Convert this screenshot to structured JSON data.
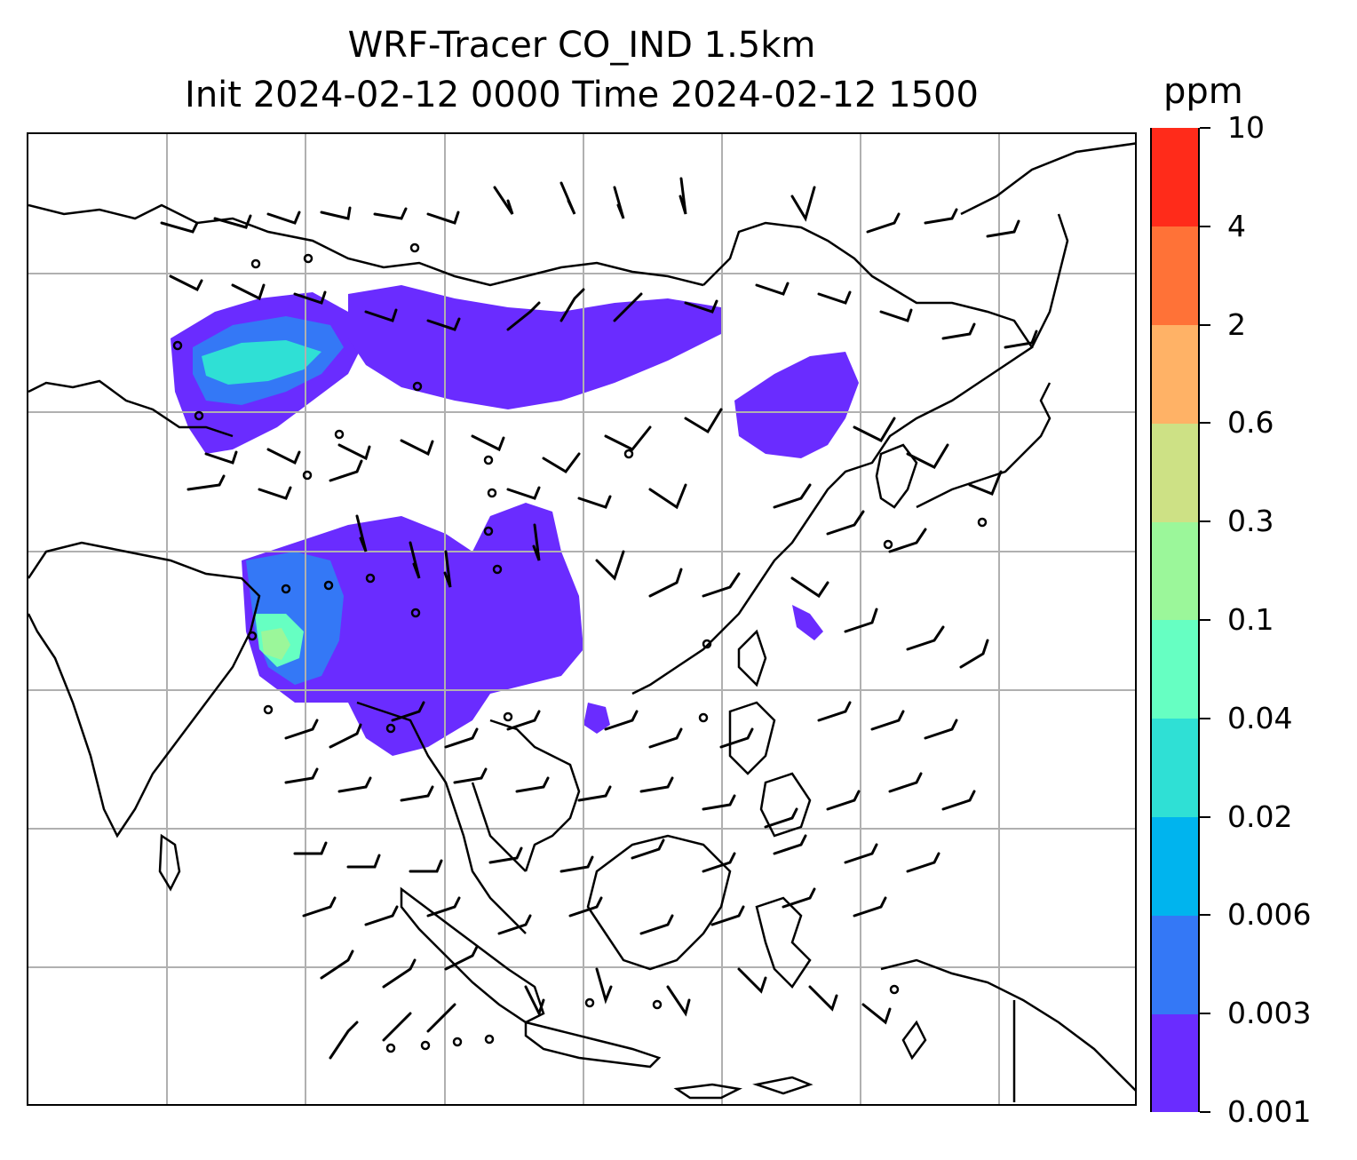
{
  "title": {
    "line1": "WRF-Tracer CO_IND 1.5km",
    "line2": "Init 2024-02-12 0000 Time 2024-02-12 1500"
  },
  "colorbar": {
    "unit": "ppm",
    "levels": [
      "0.001",
      "0.003",
      "0.006",
      "0.02",
      "0.04",
      "0.1",
      "0.3",
      "0.6",
      "2",
      "4",
      "10"
    ],
    "colors": [
      "#6a2cff",
      "#3478f6",
      "#00b4ee",
      "#2fe0d5",
      "#66ffc2",
      "#9bf79a",
      "#cde185",
      "#ffb266",
      "#ff7237",
      "#ff2b1a"
    ]
  },
  "map": {
    "gridlines": "on",
    "field": "CO_IND tracer concentration with wind barbs"
  }
}
